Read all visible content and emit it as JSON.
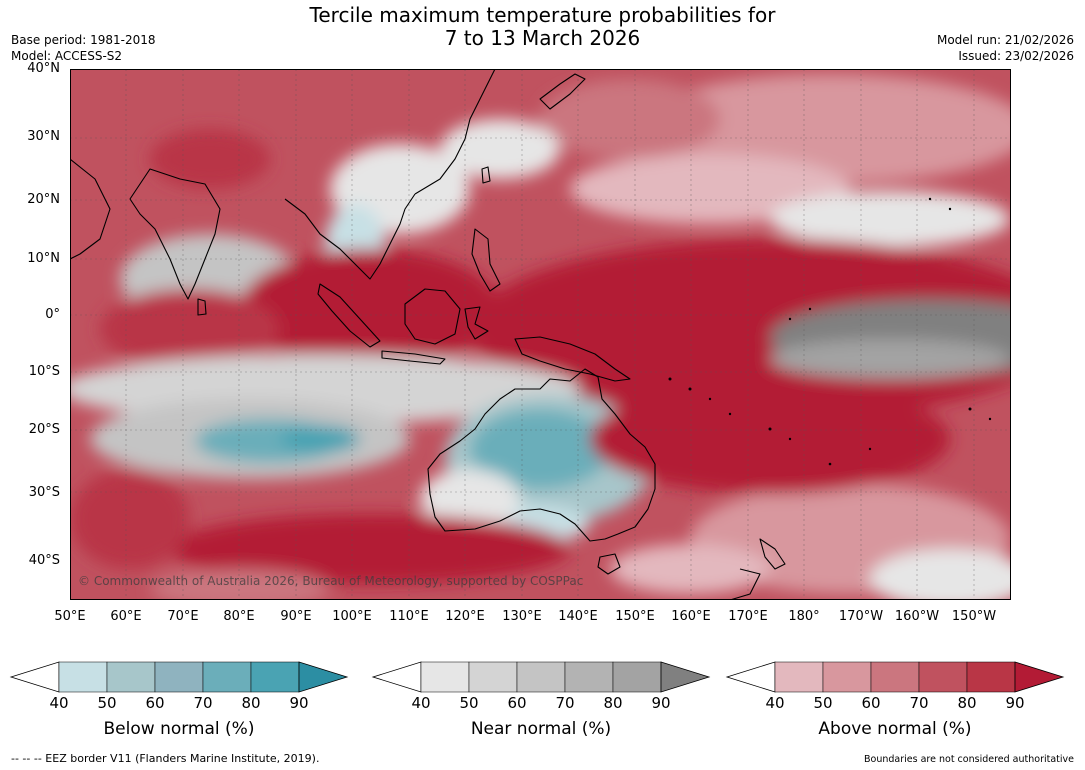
{
  "title_line1": "Tercile maximum temperature probabilities for",
  "title_line2": "7 to 13 March 2026",
  "base_period": "Base period: 1981-2018",
  "model": "Model: ACCESS-S2",
  "model_run": "Model run: 21/02/2026",
  "issued": "Issued: 23/02/2026",
  "lat_labels": [
    "40°N",
    "30°N",
    "20°N",
    "10°N",
    "0°",
    "10°S",
    "20°S",
    "30°S",
    "40°S"
  ],
  "lon_labels": [
    "50°E",
    "60°E",
    "70°E",
    "80°E",
    "90°E",
    "100°E",
    "110°E",
    "120°E",
    "130°E",
    "140°E",
    "150°E",
    "160°E",
    "170°E",
    "180°",
    "170°W",
    "160°W",
    "150°W"
  ],
  "copyright": "© Commonwealth of Australia 2026, Bureau of Meteorology, supported by COSPPac",
  "colorbars": [
    {
      "label": "Below normal (%)",
      "ticks": [
        "40",
        "50",
        "60",
        "70",
        "80",
        "90"
      ],
      "colors": [
        "#ffffff",
        "#c7e0e5",
        "#a7c6ca",
        "#8fb3bf",
        "#6baeba",
        "#4aa3b3",
        "#2c8ea3"
      ]
    },
    {
      "label": "Near normal (%)",
      "ticks": [
        "40",
        "50",
        "60",
        "70",
        "80",
        "90"
      ],
      "colors": [
        "#ffffff",
        "#e6e6e6",
        "#d4d4d4",
        "#c4c4c4",
        "#b3b3b3",
        "#a3a3a3",
        "#808080"
      ]
    },
    {
      "label": "Above normal (%)",
      "ticks": [
        "40",
        "50",
        "60",
        "70",
        "80",
        "90"
      ],
      "colors": [
        "#ffffff",
        "#e3b8be",
        "#d8979e",
        "#cb767f",
        "#c0525f",
        "#b93646",
        "#b31b35"
      ]
    }
  ],
  "footer_left": "--  --  -- EEZ border V11 (Flanders Marine Institute, 2019).",
  "footer_right": "Boundaries are not considered authoritative"
}
